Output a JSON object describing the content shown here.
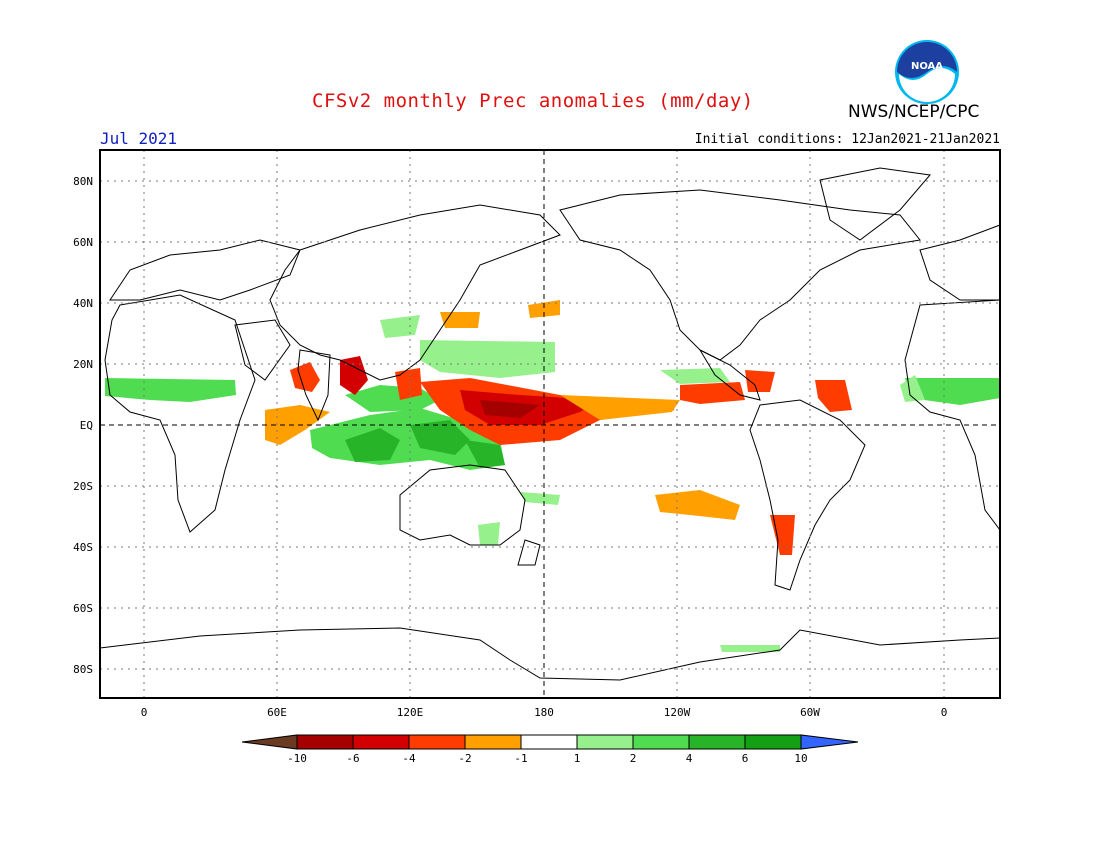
{
  "header": {
    "title": "CFSv2 monthly Prec anomalies (mm/day)",
    "agency": "NWS/NCEP/CPC",
    "logo_text": "NOAA",
    "month": "Jul 2021",
    "initial_conditions": "Initial conditions: 12Jan2021-21Jan2021"
  },
  "map": {
    "lat_labels": [
      "80N",
      "60N",
      "40N",
      "20N",
      "EQ",
      "20S",
      "40S",
      "60S",
      "80S"
    ],
    "lon_labels": [
      "0",
      "60E",
      "120E",
      "180",
      "120W",
      "60W",
      "0"
    ]
  },
  "colorbar": {
    "labels": [
      "-10",
      "-6",
      "-4",
      "-2",
      "-1",
      "1",
      "2",
      "4",
      "6",
      "10"
    ],
    "colors": {
      "below_min": "#6b3a22",
      "c1": "#a50000",
      "c2": "#d20000",
      "c3": "#ff3c00",
      "c4": "#ffa000",
      "c5": "#ffffff",
      "c6": "#96f08c",
      "c7": "#50dc50",
      "c8": "#28b428",
      "c9": "#14a014",
      "above_max": "#3264ff"
    }
  }
}
